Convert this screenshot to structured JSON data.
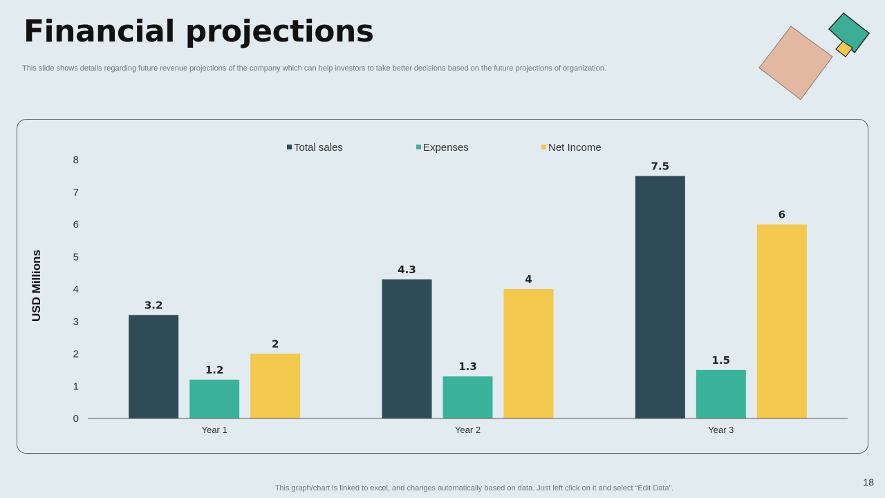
{
  "slide": {
    "title": "Financial projections",
    "subtitle": "This slide shows details regarding future revenue projections of the company which can help investors to take better decisions based on the future projections of organization.",
    "footnote": "This graph/chart is linked to excel,  and changes automatically based on data. Just left click on it and select “Edit Data”.",
    "page_number": "18"
  },
  "colors": {
    "total_sales": "#2f4b57",
    "expenses": "#3bb39b",
    "net_income": "#f2c94c"
  },
  "chart_data": {
    "type": "bar",
    "title": "",
    "xlabel": "",
    "ylabel": "USD Millions",
    "categories": [
      "Year 1",
      "Year 2",
      "Year 3"
    ],
    "series": [
      {
        "name": "Total sales",
        "values": [
          3.2,
          4.3,
          7.5
        ],
        "labels": [
          "3.2",
          "4.3",
          "7.5"
        ]
      },
      {
        "name": "Expenses",
        "values": [
          1.2,
          1.3,
          1.5
        ],
        "labels": [
          "1.2",
          "1.3",
          "1.5"
        ]
      },
      {
        "name": "Net Income",
        "values": [
          2,
          4,
          6
        ],
        "labels": [
          "2",
          "4",
          "6"
        ]
      }
    ],
    "ylim": [
      0,
      8
    ],
    "yticks": [
      "0",
      "1",
      "2",
      "3",
      "4",
      "5",
      "6",
      "7",
      "8"
    ],
    "legend": "top-center",
    "grid": false
  }
}
